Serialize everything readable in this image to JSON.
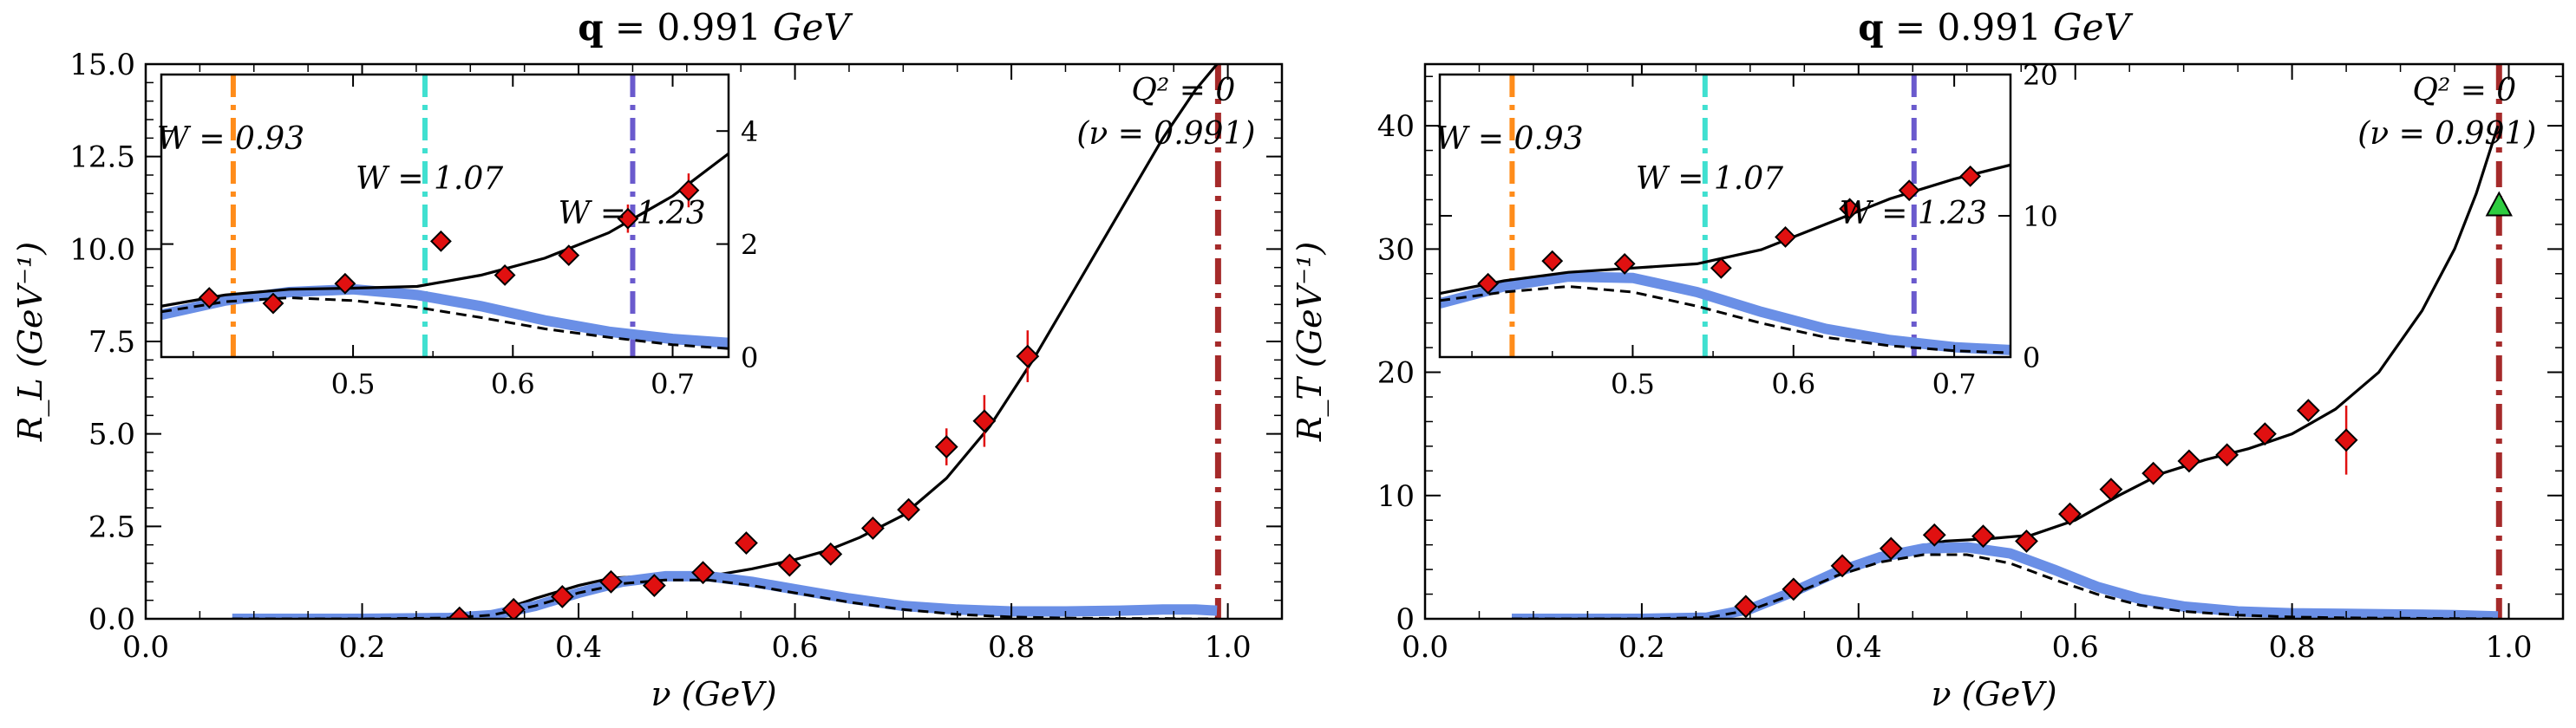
{
  "chart_data": [
    {
      "type": "line",
      "title": "q = 0.991 GeV",
      "title_bold": "q",
      "title_mid": " = 0.991 ",
      "title_unit": "GeV",
      "xlabel": "ν (GeV)",
      "ylabel": "R_L (GeV⁻¹)",
      "xlim": [
        0.0,
        1.05
      ],
      "ylim": [
        0.0,
        15.0
      ],
      "xticks": [
        "0.0",
        "0.2",
        "0.4",
        "0.6",
        "0.8",
        "1.0"
      ],
      "yticks": [
        "0.0",
        "2.5",
        "5.0",
        "7.5",
        "10.0",
        "12.5",
        "15.0"
      ],
      "annotation_line1": "Q² = 0",
      "annotation_line2": "(ν = 0.991)",
      "q2_zero_nu": 0.991,
      "colors": {
        "blue": "#6a8fe6",
        "red": "#e01010",
        "darkred": "#a52a2a",
        "orange": "#ff8c1a",
        "cyan": "#40e0d0",
        "purple": "#6a5acd"
      },
      "series": [
        {
          "style": "solid",
          "x": [
            0.08,
            0.15,
            0.2,
            0.25,
            0.28,
            0.3,
            0.33,
            0.36,
            0.4,
            0.43,
            0.46,
            0.5,
            0.53,
            0.56,
            0.6,
            0.63,
            0.66,
            0.7,
            0.74,
            0.78,
            0.82,
            0.86,
            0.9,
            0.94,
            0.97,
            0.99
          ],
          "y": [
            0,
            0,
            0,
            0.02,
            0.05,
            0.1,
            0.25,
            0.55,
            0.9,
            1.1,
            1.15,
            1.15,
            1.2,
            1.35,
            1.6,
            1.85,
            2.2,
            2.8,
            3.8,
            5.2,
            7.0,
            9.0,
            11.0,
            13.0,
            14.3,
            15.0
          ]
        },
        {
          "style": "blue-band",
          "x": [
            0.08,
            0.2,
            0.28,
            0.32,
            0.36,
            0.4,
            0.44,
            0.48,
            0.52,
            0.56,
            0.6,
            0.65,
            0.7,
            0.75,
            0.8,
            0.85,
            0.9,
            0.94,
            0.97,
            0.99
          ],
          "y": [
            0,
            0,
            0.02,
            0.1,
            0.35,
            0.7,
            1.0,
            1.15,
            1.15,
            1.0,
            0.8,
            0.55,
            0.35,
            0.25,
            0.2,
            0.2,
            0.22,
            0.25,
            0.25,
            0.22
          ]
        },
        {
          "style": "dashed",
          "x": [
            0.08,
            0.2,
            0.28,
            0.32,
            0.36,
            0.4,
            0.44,
            0.48,
            0.52,
            0.56,
            0.6,
            0.65,
            0.7,
            0.75,
            0.8,
            0.85,
            0.9,
            0.94,
            0.97,
            0.99
          ],
          "y": [
            0,
            0,
            0.02,
            0.1,
            0.35,
            0.7,
            0.95,
            1.05,
            1.05,
            0.9,
            0.7,
            0.45,
            0.25,
            0.12,
            0.05,
            0.02,
            0.01,
            0.01,
            0.0,
            0.0
          ]
        }
      ],
      "points": {
        "x": [
          0.29,
          0.34,
          0.385,
          0.43,
          0.47,
          0.515,
          0.555,
          0.595,
          0.633,
          0.672,
          0.705,
          0.74,
          0.775,
          0.815
        ],
        "y": [
          0.02,
          0.25,
          0.6,
          1.0,
          0.9,
          1.25,
          2.05,
          1.45,
          1.75,
          2.45,
          2.95,
          4.65,
          5.35,
          7.1
        ],
        "err": [
          0.05,
          0.1,
          0.15,
          0.15,
          0.15,
          0.15,
          0.15,
          0.2,
          0.2,
          0.2,
          0.25,
          0.5,
          0.7,
          0.7
        ]
      },
      "inset": {
        "xlim": [
          0.38,
          0.735
        ],
        "ylim": [
          0,
          5
        ],
        "xticks": [
          "0.5",
          "0.6",
          "0.7"
        ],
        "yticks": [
          "0",
          "2",
          "4"
        ],
        "w_lines": [
          {
            "nu": 0.425,
            "label": "W = 0.93",
            "color": "#ff8c1a"
          },
          {
            "nu": 0.545,
            "label": "W = 1.07",
            "color": "#40e0d0"
          },
          {
            "nu": 0.675,
            "label": "W = 1.23",
            "color": "#6a5acd"
          }
        ],
        "solid": {
          "x": [
            0.38,
            0.42,
            0.46,
            0.5,
            0.54,
            0.58,
            0.62,
            0.66,
            0.7,
            0.735
          ],
          "y": [
            0.9,
            1.1,
            1.2,
            1.22,
            1.25,
            1.45,
            1.75,
            2.2,
            2.85,
            3.6
          ]
        },
        "blue": {
          "x": [
            0.38,
            0.42,
            0.46,
            0.5,
            0.54,
            0.58,
            0.62,
            0.66,
            0.7,
            0.735
          ],
          "y": [
            0.75,
            1.0,
            1.15,
            1.2,
            1.1,
            0.9,
            0.65,
            0.45,
            0.32,
            0.25
          ]
        },
        "dashed": {
          "x": [
            0.38,
            0.42,
            0.46,
            0.5,
            0.54,
            0.58,
            0.62,
            0.66,
            0.7,
            0.735
          ],
          "y": [
            0.8,
            0.98,
            1.05,
            1.0,
            0.88,
            0.7,
            0.5,
            0.35,
            0.22,
            0.15
          ]
        },
        "points": {
          "x": [
            0.41,
            0.45,
            0.495,
            0.555,
            0.595,
            0.635,
            0.672,
            0.71
          ],
          "y": [
            1.05,
            0.95,
            1.3,
            2.05,
            1.45,
            1.8,
            2.45,
            2.95
          ],
          "err": [
            0.05,
            0.05,
            0.1,
            0.1,
            0.15,
            0.15,
            0.25,
            0.3
          ]
        }
      }
    },
    {
      "type": "line",
      "title": "q = 0.991 GeV",
      "title_bold": "q",
      "title_mid": " = 0.991 ",
      "title_unit": "GeV",
      "xlabel": "ν (GeV)",
      "ylabel": "R_T (GeV⁻¹)",
      "xlim": [
        0.0,
        1.05
      ],
      "ylim": [
        0,
        45
      ],
      "xticks": [
        "0.0",
        "0.2",
        "0.4",
        "0.6",
        "0.8",
        "1.0"
      ],
      "yticks": [
        "0",
        "10",
        "20",
        "30",
        "40"
      ],
      "annotation_line1": "Q² = 0",
      "annotation_line2": "(ν = 0.991)",
      "q2_zero_nu": 0.991,
      "photon_point": {
        "x": 0.991,
        "y": 33.5,
        "color": "#2ecc40"
      },
      "series": [
        {
          "style": "solid",
          "x": [
            0.08,
            0.2,
            0.26,
            0.29,
            0.32,
            0.36,
            0.4,
            0.44,
            0.48,
            0.52,
            0.56,
            0.6,
            0.64,
            0.68,
            0.72,
            0.76,
            0.8,
            0.84,
            0.88,
            0.92,
            0.95,
            0.97,
            0.99
          ],
          "y": [
            0,
            0,
            0.1,
            0.5,
            1.5,
            3.0,
            4.5,
            5.6,
            6.3,
            6.5,
            6.8,
            8.0,
            10.0,
            11.8,
            12.9,
            13.8,
            15.0,
            17.0,
            20.0,
            25.0,
            30.0,
            34.5,
            40.0
          ]
        },
        {
          "style": "blue-band",
          "x": [
            0.08,
            0.2,
            0.26,
            0.3,
            0.34,
            0.38,
            0.42,
            0.46,
            0.5,
            0.54,
            0.58,
            0.62,
            0.66,
            0.7,
            0.75,
            0.8,
            0.85,
            0.9,
            0.95,
            0.99
          ],
          "y": [
            0,
            0,
            0.1,
            0.8,
            2.2,
            3.8,
            5.0,
            5.7,
            5.8,
            5.3,
            4.0,
            2.6,
            1.6,
            1.0,
            0.6,
            0.45,
            0.4,
            0.35,
            0.3,
            0.2
          ]
        },
        {
          "style": "dashed",
          "x": [
            0.08,
            0.2,
            0.26,
            0.3,
            0.34,
            0.38,
            0.42,
            0.46,
            0.5,
            0.54,
            0.58,
            0.62,
            0.66,
            0.7,
            0.75,
            0.8,
            0.85,
            0.9,
            0.95,
            0.99
          ],
          "y": [
            0,
            0,
            0.1,
            0.7,
            2.0,
            3.5,
            4.6,
            5.2,
            5.2,
            4.5,
            3.2,
            2.0,
            1.1,
            0.6,
            0.3,
            0.15,
            0.08,
            0.05,
            0.02,
            0.0
          ]
        }
      ],
      "points": {
        "x": [
          0.296,
          0.34,
          0.385,
          0.43,
          0.47,
          0.515,
          0.555,
          0.595,
          0.633,
          0.672,
          0.705,
          0.74,
          0.775,
          0.815,
          0.85
        ],
        "y": [
          1.0,
          2.4,
          4.3,
          5.7,
          6.8,
          6.7,
          6.3,
          8.5,
          10.5,
          11.8,
          12.8,
          13.3,
          15.0,
          16.9,
          14.5
        ],
        "err": [
          0.2,
          0.3,
          0.4,
          0.4,
          0.4,
          0.4,
          0.4,
          0.5,
          0.5,
          0.5,
          0.5,
          0.6,
          0.6,
          0.8,
          2.8
        ]
      },
      "inset": {
        "xlim": [
          0.38,
          0.735
        ],
        "ylim": [
          0,
          20
        ],
        "xticks": [
          "0.5",
          "0.6",
          "0.7"
        ],
        "yticks": [
          "0",
          "10",
          "20"
        ],
        "w_lines": [
          {
            "nu": 0.425,
            "label": "W = 0.93",
            "color": "#ff8c1a"
          },
          {
            "nu": 0.545,
            "label": "W = 1.07",
            "color": "#40e0d0"
          },
          {
            "nu": 0.675,
            "label": "W = 1.23",
            "color": "#6a5acd"
          }
        ],
        "solid": {
          "x": [
            0.38,
            0.42,
            0.46,
            0.5,
            0.54,
            0.58,
            0.62,
            0.66,
            0.7,
            0.735
          ],
          "y": [
            4.5,
            5.4,
            6.0,
            6.3,
            6.6,
            7.6,
            9.4,
            11.2,
            12.6,
            13.6
          ]
        },
        "blue": {
          "x": [
            0.38,
            0.42,
            0.46,
            0.5,
            0.54,
            0.58,
            0.62,
            0.66,
            0.7,
            0.735
          ],
          "y": [
            3.8,
            5.0,
            5.7,
            5.6,
            4.6,
            3.2,
            2.0,
            1.2,
            0.7,
            0.5
          ]
        },
        "dashed": {
          "x": [
            0.38,
            0.42,
            0.46,
            0.5,
            0.54,
            0.58,
            0.62,
            0.66,
            0.7,
            0.735
          ],
          "y": [
            4.0,
            4.6,
            5.0,
            4.6,
            3.6,
            2.4,
            1.4,
            0.8,
            0.45,
            0.3
          ]
        },
        "points": {
          "x": [
            0.41,
            0.45,
            0.495,
            0.555,
            0.595,
            0.635,
            0.672,
            0.71
          ],
          "y": [
            5.2,
            6.8,
            6.6,
            6.3,
            8.5,
            10.5,
            11.8,
            12.8
          ],
          "err": [
            0.2,
            0.2,
            0.3,
            0.3,
            0.3,
            0.3,
            0.3,
            0.4
          ]
        }
      }
    }
  ]
}
